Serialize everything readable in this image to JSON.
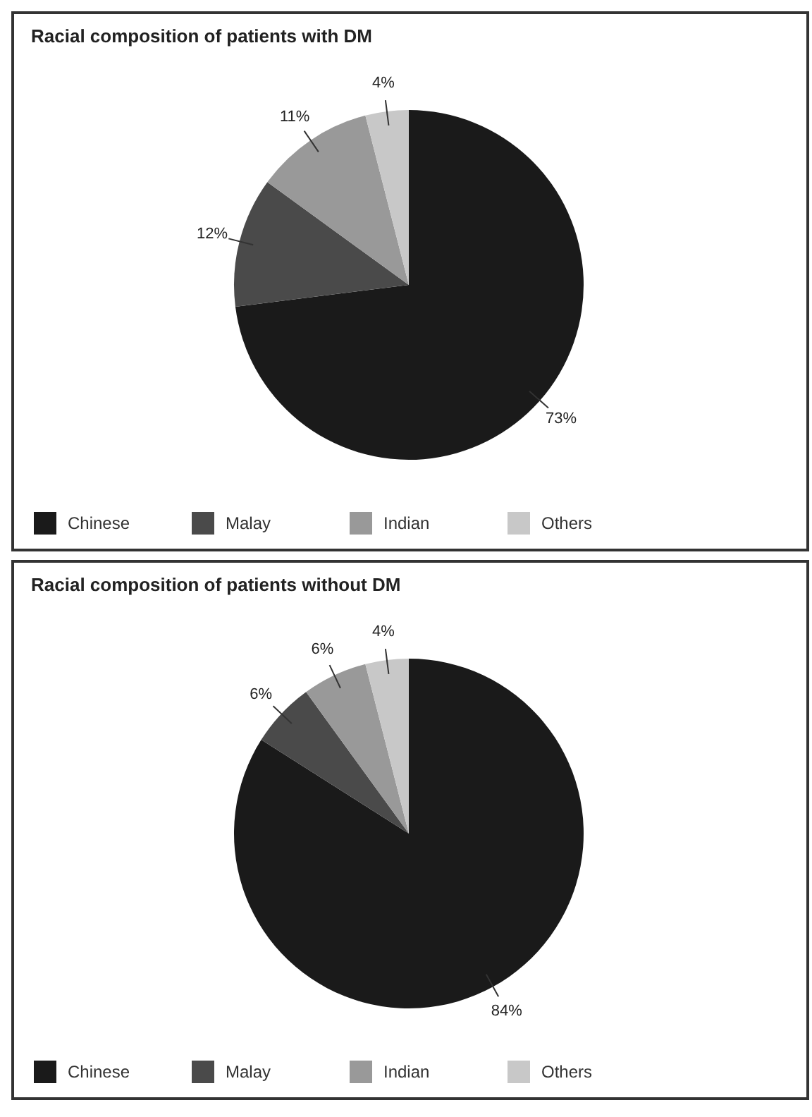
{
  "chart_data": [
    {
      "type": "pie",
      "title": "Racial composition of patients with DM",
      "categories": [
        "Chinese",
        "Malay",
        "Indian",
        "Others"
      ],
      "values": [
        73,
        12,
        11,
        4
      ],
      "value_labels": [
        "73%",
        "12%",
        "11%",
        "4%"
      ],
      "colors": [
        "#1a1a1a",
        "#4a4a4a",
        "#999999",
        "#c8c8c8"
      ],
      "legend": "bottom"
    },
    {
      "type": "pie",
      "title": "Racial composition of patients without DM",
      "categories": [
        "Chinese",
        "Malay",
        "Indian",
        "Others"
      ],
      "values": [
        84,
        6,
        6,
        4
      ],
      "value_labels": [
        "84%",
        "6%",
        "6%",
        "4%"
      ],
      "colors": [
        "#1a1a1a",
        "#4a4a4a",
        "#999999",
        "#c8c8c8"
      ],
      "legend": "bottom"
    }
  ]
}
